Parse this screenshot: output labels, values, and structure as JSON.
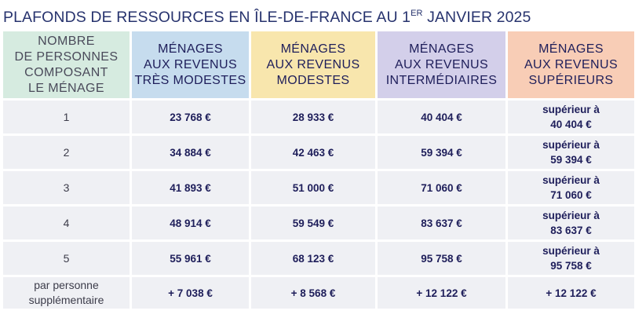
{
  "title": {
    "main": "PLAFONDS DE RESSOURCES EN ÎLE-DE-FRANCE AU 1",
    "sup": "ER",
    "tail": " JANVIER 2025"
  },
  "colors": {
    "col0": "#d6ebe0",
    "col1": "#c6dcee",
    "col2": "#f8e6ad",
    "col3": "#d3cfea",
    "col4": "#f8cdb6",
    "row_bg": "#eff0f4",
    "text": "#1e1e5a"
  },
  "headers": [
    [
      "NOMBRE",
      "DE PERSONNES",
      "COMPOSANT",
      "LE MÉNAGE"
    ],
    [
      "MÉNAGES",
      "AUX REVENUS",
      "TRÈS MODESTES"
    ],
    [
      "MÉNAGES",
      "AUX REVENUS",
      "MODESTES"
    ],
    [
      "MÉNAGES",
      "AUX REVENUS",
      "INTERMÉDIAIRES"
    ],
    [
      "MÉNAGES",
      "AUX REVENUS",
      "SUPÉRIEURS"
    ]
  ],
  "rows": [
    {
      "persons": "1",
      "tres_modestes": "23 768 €",
      "modestes": "28 933 €",
      "intermediaires": "40 404 €",
      "sup_line1": "supérieur à",
      "sup_line2": "40 404 €"
    },
    {
      "persons": "2",
      "tres_modestes": "34 884 €",
      "modestes": "42 463 €",
      "intermediaires": "59 394 €",
      "sup_line1": "supérieur à",
      "sup_line2": "59 394 €"
    },
    {
      "persons": "3",
      "tres_modestes": "41 893 €",
      "modestes": "51 000 €",
      "intermediaires": "71 060 €",
      "sup_line1": "supérieur à",
      "sup_line2": "71 060 €"
    },
    {
      "persons": "4",
      "tres_modestes": "48 914 €",
      "modestes": "59 549 €",
      "intermediaires": "83 637 €",
      "sup_line1": "supérieur à",
      "sup_line2": "83 637 €"
    },
    {
      "persons": "5",
      "tres_modestes": "55 961 €",
      "modestes": "68 123 €",
      "intermediaires": "95 758 €",
      "sup_line1": "supérieur à",
      "sup_line2": "95 758 €"
    }
  ],
  "extra": {
    "label_line1": "par personne",
    "label_line2": "supplémentaire",
    "tres_modestes": "+ 7 038 €",
    "modestes": "+ 8 568 €",
    "intermediaires": "+ 12 122 €",
    "superieurs": "+ 12 122 €"
  }
}
